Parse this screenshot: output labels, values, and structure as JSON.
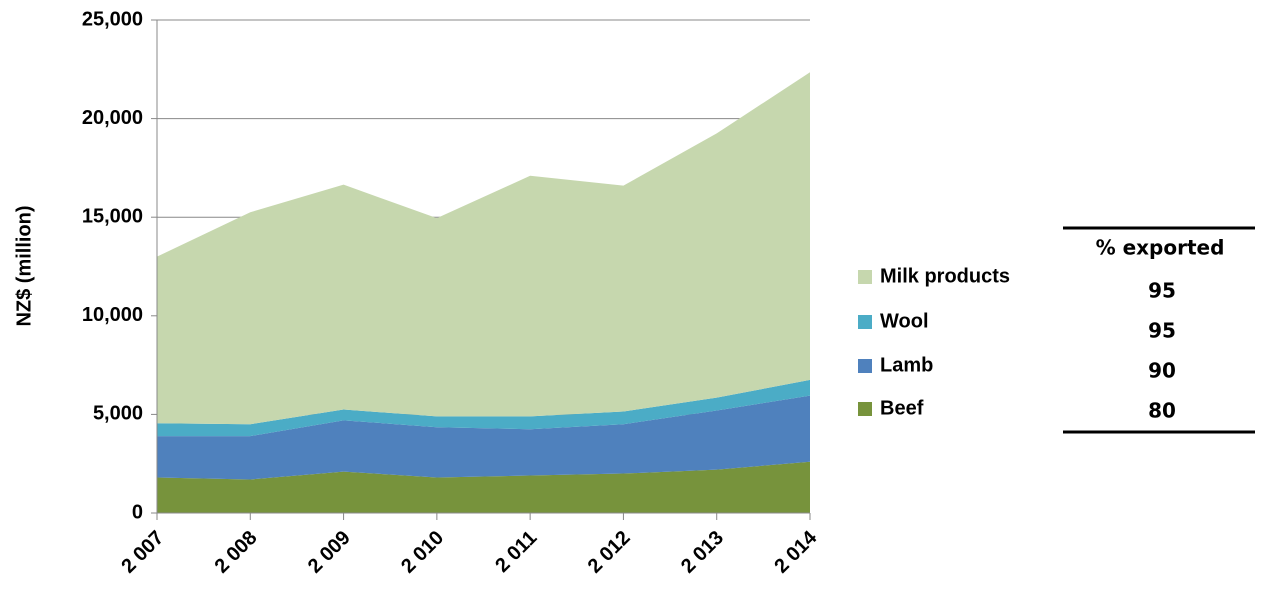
{
  "chart_data": {
    "type": "stacked_area",
    "y_label": "NZ$ (million)",
    "categories": [
      "2 007",
      "2 008",
      "2 009",
      "2 010",
      "2 011",
      "2 012",
      "2 013",
      "2 014"
    ],
    "series": [
      {
        "name": "Beef",
        "color": "#77933c",
        "values": [
          1800,
          1700,
          2100,
          1800,
          1900,
          2000,
          2200,
          2600
        ],
        "exported": 80
      },
      {
        "name": "Lamb",
        "color": "#4f81bd",
        "values": [
          2100,
          2200,
          2600,
          2550,
          2350,
          2500,
          3000,
          3350
        ],
        "exported": 90
      },
      {
        "name": "Wool",
        "color": "#4bacc6",
        "values": [
          650,
          600,
          550,
          550,
          650,
          650,
          650,
          800
        ],
        "exported": 95
      },
      {
        "name": "Milk products",
        "color": "#c6d7ae",
        "values": [
          8450,
          10750,
          11400,
          10050,
          12200,
          11450,
          13400,
          15600
        ],
        "exported": 95
      }
    ],
    "table_header": "% exported",
    "ylim": [
      0,
      25000
    ],
    "yticks": [
      0,
      {
        "value": 5000,
        "label": "5,000"
      },
      {
        "value": 10000,
        "label": "10,000"
      },
      {
        "value": 15000,
        "label": "15,000"
      },
      {
        "value": 20000,
        "label": "20,000"
      },
      {
        "value": 25000,
        "label": "25,000"
      }
    ],
    "grid": true
  }
}
